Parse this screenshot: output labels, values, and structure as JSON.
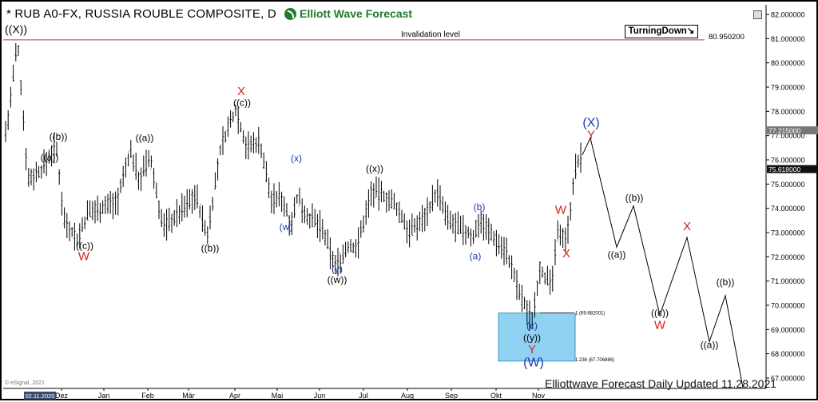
{
  "header": {
    "title": "* RUB A0-FX, RUSSIA ROUBLE COMPOSITE, D",
    "brand": "Elliott Wave Forecast",
    "turning_down": "TurningDown",
    "turning_down_arrow": "↘",
    "footer": "Elliottwave Forecast Daily Updated 11.28.2021",
    "provider": "© eSignal, 2021",
    "date_tag": "02.11.2020"
  },
  "chart_data": {
    "type": "ohlc-bars",
    "ylim": [
      66.5,
      82.3
    ],
    "y_ticks": [
      "82.000000",
      "81.000000",
      "80.000000",
      "79.000000",
      "78.000000",
      "77.000000",
      "76.000000",
      "75.000000",
      "74.000000",
      "73.000000",
      "72.000000",
      "71.000000",
      "70.000000",
      "69.000000",
      "68.000000",
      "67.000000"
    ],
    "x_labels": [
      "Dez",
      "Jan",
      "Feb",
      "Mär",
      "Apr",
      "Mai",
      "Jun",
      "Jul",
      "Aug",
      "Sep",
      "Okt",
      "Nov"
    ],
    "price_tags": [
      {
        "text": "77.215000",
        "value": 77.215,
        "color": "#777777"
      },
      {
        "text": "75.618000",
        "value": 75.618,
        "color": "#111111"
      }
    ],
    "invalidation": {
      "label": "Invalidation level",
      "value": 80.9502,
      "value_text": "80.950200",
      "color": "#cc3333"
    },
    "series_anchors": [
      [
        0,
        76.5
      ],
      [
        8,
        77.6
      ],
      [
        20,
        80.9
      ],
      [
        33,
        75.2
      ],
      [
        50,
        75.6
      ],
      [
        68,
        76.6
      ],
      [
        78,
        73.6
      ],
      [
        95,
        72.7
      ],
      [
        108,
        73.8
      ],
      [
        128,
        74.1
      ],
      [
        145,
        74.3
      ],
      [
        161,
        76.4
      ],
      [
        172,
        75.2
      ],
      [
        186,
        76.1
      ],
      [
        202,
        73.2
      ],
      [
        222,
        73.8
      ],
      [
        243,
        74.6
      ],
      [
        257,
        72.8
      ],
      [
        275,
        76.6
      ],
      [
        293,
        78.1
      ],
      [
        307,
        76.5
      ],
      [
        323,
        76.8
      ],
      [
        338,
        74.3
      ],
      [
        350,
        74.5
      ],
      [
        362,
        73.4
      ],
      [
        371,
        74.5
      ],
      [
        380,
        73.8
      ],
      [
        400,
        73.2
      ],
      [
        418,
        71.6
      ],
      [
        433,
        72.4
      ],
      [
        445,
        72.4
      ],
      [
        463,
        74.7
      ],
      [
        480,
        74.5
      ],
      [
        495,
        74.0
      ],
      [
        511,
        73.0
      ],
      [
        528,
        73.6
      ],
      [
        545,
        74.7
      ],
      [
        558,
        73.5
      ],
      [
        575,
        73.1
      ],
      [
        592,
        72.8
      ],
      [
        598,
        73.6
      ],
      [
        616,
        72.8
      ],
      [
        632,
        72.2
      ],
      [
        650,
        70.3
      ],
      [
        664,
        69.4
      ],
      [
        674,
        71.6
      ],
      [
        688,
        70.7
      ],
      [
        697,
        73.1
      ],
      [
        708,
        72.8
      ],
      [
        717,
        75.5
      ],
      [
        727,
        76.2
      ]
    ],
    "projection": [
      [
        727,
        76.2
      ],
      [
        737,
        76.9
      ],
      [
        770,
        72.4
      ],
      [
        791,
        74.1
      ],
      [
        824,
        69.6
      ],
      [
        858,
        72.8
      ],
      [
        886,
        68.5
      ],
      [
        906,
        70.4
      ],
      [
        928,
        66.6
      ]
    ],
    "fib_box": {
      "top": 69.68,
      "bottom": 67.7,
      "top_label": "1 (69.682001)",
      "bottom_label": "1.236 (67.706886)",
      "color": "#8fd2f2"
    },
    "labels": [
      {
        "text": "((X))",
        "x": 4,
        "y": 81.23,
        "color": "#000000",
        "size": 14
      },
      {
        "text": "((b))",
        "x": 71,
        "y": 76.83,
        "color": "#000000",
        "size": 12
      },
      {
        "text": "((a))",
        "x": 60,
        "y": 75.97,
        "color": "#000000",
        "size": 12
      },
      {
        "text": "((c))",
        "x": 104,
        "y": 72.33,
        "color": "#000000",
        "size": 12
      },
      {
        "text": "W",
        "x": 103,
        "y": 71.86,
        "color": "#d42020",
        "size": 15
      },
      {
        "text": "((a))",
        "x": 179,
        "y": 76.77,
        "color": "#000000",
        "size": 12
      },
      {
        "text": "((b))",
        "x": 261,
        "y": 72.23,
        "color": "#000000",
        "size": 12
      },
      {
        "text": "X",
        "x": 300,
        "y": 78.67,
        "color": "#d42020",
        "size": 15
      },
      {
        "text": "((c))",
        "x": 301,
        "y": 78.23,
        "color": "#000000",
        "size": 12
      },
      {
        "text": "(x)",
        "x": 369,
        "y": 75.93,
        "color": "#1a3bb0",
        "size": 12
      },
      {
        "text": "(w)",
        "x": 356,
        "y": 73.1,
        "color": "#1a3bb0",
        "size": 12
      },
      {
        "text": "(y)",
        "x": 420,
        "y": 71.37,
        "color": "#1a3bb0",
        "size": 12
      },
      {
        "text": "((w))",
        "x": 420,
        "y": 70.93,
        "color": "#000000",
        "size": 12
      },
      {
        "text": "((x))",
        "x": 467,
        "y": 75.5,
        "color": "#000000",
        "size": 12
      },
      {
        "text": "(b)",
        "x": 598,
        "y": 73.93,
        "color": "#1a3bb0",
        "size": 12
      },
      {
        "text": "(a)",
        "x": 593,
        "y": 71.9,
        "color": "#1a3bb0",
        "size": 12
      },
      {
        "text": "(c)",
        "x": 664,
        "y": 69.03,
        "color": "#1a3bb0",
        "size": 12
      },
      {
        "text": "((y))",
        "x": 664,
        "y": 68.53,
        "color": "#000000",
        "size": 12
      },
      {
        "text": "Y",
        "x": 664,
        "y": 68.03,
        "color": "#d42020",
        "size": 15
      },
      {
        "text": "(W)",
        "x": 666,
        "y": 67.47,
        "color": "#1a3bb0",
        "size": 16
      },
      {
        "text": "W",
        "x": 700,
        "y": 73.77,
        "color": "#d42020",
        "size": 15
      },
      {
        "text": "X",
        "x": 707,
        "y": 71.97,
        "color": "#d42020",
        "size": 15
      },
      {
        "text": "(X)",
        "x": 738,
        "y": 77.37,
        "color": "#1a3bb0",
        "size": 16
      },
      {
        "text": "Y",
        "x": 738,
        "y": 76.87,
        "color": "#d42020",
        "size": 15
      },
      {
        "text": "((b))",
        "x": 792,
        "y": 74.3,
        "color": "#000000",
        "size": 12
      },
      {
        "text": "((a))",
        "x": 770,
        "y": 71.96,
        "color": "#000000",
        "size": 12
      },
      {
        "text": "((c))",
        "x": 824,
        "y": 69.56,
        "color": "#000000",
        "size": 12
      },
      {
        "text": "W",
        "x": 824,
        "y": 69.03,
        "color": "#d42020",
        "size": 15
      },
      {
        "text": "X",
        "x": 858,
        "y": 73.1,
        "color": "#d42020",
        "size": 15
      },
      {
        "text": "((b))",
        "x": 906,
        "y": 70.83,
        "color": "#000000",
        "size": 12
      },
      {
        "text": "((a))",
        "x": 886,
        "y": 68.23,
        "color": "#000000",
        "size": 12
      }
    ]
  }
}
